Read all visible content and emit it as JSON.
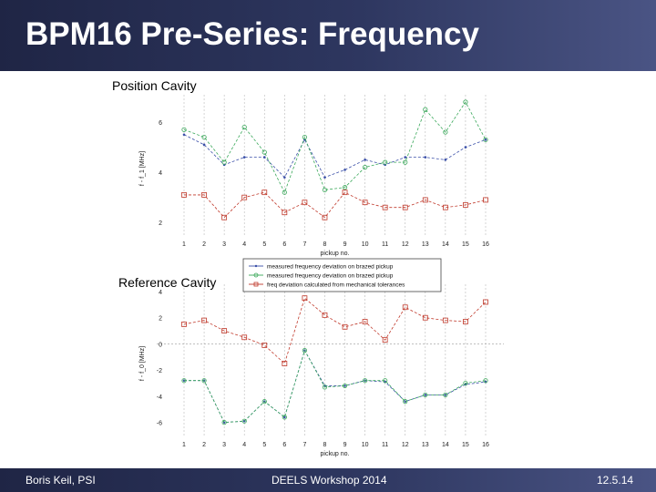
{
  "slide": {
    "title": "BPM16 Pre-Series: Frequency",
    "footer_left": "Boris Keil, PSI",
    "footer_center": "DEELS Workshop 2014",
    "footer_right": "12.5.14"
  },
  "colors": {
    "header_bg": "#2e3760",
    "series_blue": "#3a4fa8",
    "series_green": "#3aa85a",
    "series_red": "#c0392b"
  },
  "chart_data": [
    {
      "type": "line",
      "title": "Position Cavity",
      "xlabel": "pickup no.",
      "ylabel": "f - f_1 [MHz]",
      "x": [
        1,
        2,
        3,
        4,
        5,
        6,
        7,
        8,
        9,
        10,
        11,
        12,
        13,
        14,
        15,
        16
      ],
      "x_ticks": [
        "1",
        "2",
        "3",
        "4",
        "5",
        "6",
        "7",
        "8",
        "9",
        "10",
        "11",
        "12",
        "13",
        "14",
        "15",
        "16"
      ],
      "y_ticks": [
        "2",
        "4",
        "6"
      ],
      "ylim": [
        1.5,
        6.8
      ],
      "grid": "vertical",
      "legend_position": "bottom-right",
      "series": [
        {
          "name": "measured frequency deviation on brazed pickup",
          "color": "#3a4fa8",
          "marker": "dot",
          "values": [
            5.5,
            5.1,
            4.3,
            4.6,
            4.6,
            3.8,
            5.3,
            3.8,
            4.1,
            4.5,
            4.3,
            4.6,
            4.6,
            4.5,
            5.0,
            5.3
          ]
        },
        {
          "name": "measured frequency deviation on brazed pickup",
          "color": "#3aa85a",
          "marker": "circle",
          "values": [
            5.7,
            5.4,
            4.4,
            5.8,
            4.8,
            3.2,
            5.4,
            3.3,
            3.4,
            4.2,
            4.4,
            4.4,
            6.5,
            5.6,
            6.8,
            5.3
          ]
        },
        {
          "name": "freq deviation calculated from mechanical tolerances",
          "color": "#c0392b",
          "marker": "square",
          "values": [
            3.1,
            3.1,
            2.2,
            3.0,
            3.2,
            2.4,
            2.8,
            2.2,
            3.2,
            2.8,
            2.6,
            2.6,
            2.9,
            2.6,
            2.7,
            2.9
          ]
        }
      ]
    },
    {
      "type": "line",
      "title": "Reference Cavity",
      "xlabel": "pickup no.",
      "ylabel": "f - f_0 [MHz]",
      "x": [
        1,
        2,
        3,
        4,
        5,
        6,
        7,
        8,
        9,
        10,
        11,
        12,
        13,
        14,
        15,
        16
      ],
      "x_ticks": [
        "1",
        "2",
        "3",
        "4",
        "5",
        "6",
        "7",
        "8",
        "9",
        "10",
        "11",
        "12",
        "13",
        "14",
        "15",
        "16"
      ],
      "y_ticks": [
        "-6",
        "-4",
        "-2",
        "0",
        "2",
        "4"
      ],
      "ylim": [
        -7,
        4
      ],
      "grid": "vertical",
      "series": [
        {
          "name": "measured frequency deviation on brazed pickup",
          "color": "#3a4fa8",
          "marker": "dot",
          "values": [
            -2.8,
            -2.8,
            -6.0,
            -5.9,
            -4.4,
            -5.6,
            -0.5,
            -3.2,
            -3.2,
            -2.8,
            -2.9,
            -4.4,
            -3.9,
            -3.9,
            -3.1,
            -2.9
          ]
        },
        {
          "name": "measured frequency deviation on brazed pickup",
          "color": "#3aa85a",
          "marker": "circle",
          "values": [
            -2.8,
            -2.8,
            -6.0,
            -5.9,
            -4.4,
            -5.6,
            -0.5,
            -3.3,
            -3.2,
            -2.8,
            -2.8,
            -4.4,
            -3.9,
            -3.9,
            -3.0,
            -2.8
          ]
        },
        {
          "name": "freq deviation calculated from mechanical tolerances",
          "color": "#c0392b",
          "marker": "square",
          "values": [
            1.5,
            1.8,
            1.0,
            0.5,
            -0.1,
            -1.5,
            3.5,
            2.2,
            1.3,
            1.7,
            0.3,
            2.8,
            2.0,
            1.8,
            1.7,
            3.2
          ]
        }
      ]
    }
  ]
}
